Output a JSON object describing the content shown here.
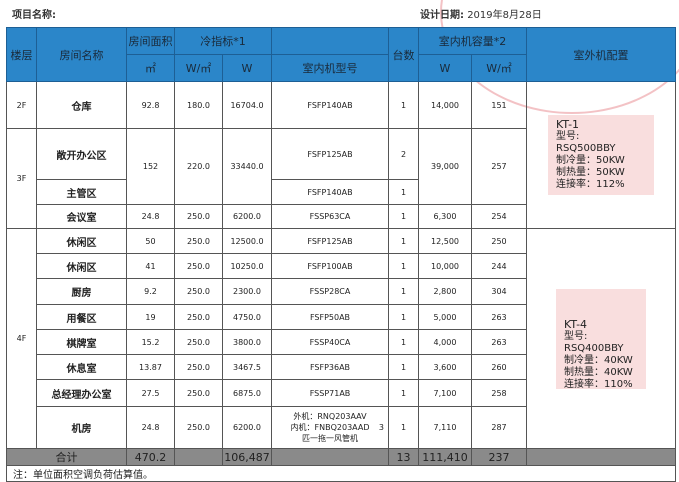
{
  "header": {
    "project_label": "项目名称:",
    "date_label": "设计日期:",
    "date": "2019年8月28日"
  },
  "columns": {
    "floor": "楼层",
    "room": "房间名称",
    "area": "房间面积",
    "area_unit": "㎡",
    "cooling": "冷指标*1",
    "cooling_wm2": "W/㎡",
    "cooling_w": "W",
    "model": "室内机型号",
    "count": "台数",
    "capacity": "室内机容量*2",
    "cap_w": "W",
    "cap_wm2": "W/㎡",
    "outdoor": "室外机配置"
  },
  "rows": [
    {
      "floor": "2F",
      "room": "仓库",
      "area": "92.8",
      "wm2": "180.0",
      "w": "16704.0",
      "model": "FSFP140AB",
      "count": "1",
      "cap_w": "14,000",
      "cap_wm2": "151"
    },
    {
      "floor": "3F",
      "room": "敞开办公区",
      "area": "152",
      "wm2": "220.0",
      "w": "33440.0",
      "model": "FSFP125AB",
      "count": "2",
      "cap_w": "39,000",
      "cap_wm2": "257"
    },
    {
      "room": "主管区",
      "model": "FSFP140AB",
      "count": "1"
    },
    {
      "room": "会议室",
      "area": "24.8",
      "wm2": "250.0",
      "w": "6200.0",
      "model": "FSSP63CA",
      "count": "1",
      "cap_w": "6,300",
      "cap_wm2": "254"
    },
    {
      "floor": "4F",
      "room": "休闲区",
      "area": "50",
      "wm2": "250.0",
      "w": "12500.0",
      "model": "FSFP125AB",
      "count": "1",
      "cap_w": "12,500",
      "cap_wm2": "250"
    },
    {
      "room": "休闲区",
      "area": "41",
      "wm2": "250.0",
      "w": "10250.0",
      "model": "FSFP100AB",
      "count": "1",
      "cap_w": "10,000",
      "cap_wm2": "244"
    },
    {
      "room": "厨房",
      "area": "9.2",
      "wm2": "250.0",
      "w": "2300.0",
      "model": "FSSP28CA",
      "count": "1",
      "cap_w": "2,800",
      "cap_wm2": "304"
    },
    {
      "room": "用餐区",
      "area": "19",
      "wm2": "250.0",
      "w": "4750.0",
      "model": "FSFP50AB",
      "count": "1",
      "cap_w": "5,000",
      "cap_wm2": "263"
    },
    {
      "room": "棋牌室",
      "area": "15.2",
      "wm2": "250.0",
      "w": "3800.0",
      "model": "FSSP40CA",
      "count": "1",
      "cap_w": "4,000",
      "cap_wm2": "263"
    },
    {
      "room": "休息室",
      "area": "13.87",
      "wm2": "250.0",
      "w": "3467.5",
      "model": "FSFP36AB",
      "count": "1",
      "cap_w": "3,600",
      "cap_wm2": "260"
    },
    {
      "room": "总经理办公室",
      "area": "27.5",
      "wm2": "250.0",
      "w": "6875.0",
      "model": "FSSP71AB",
      "count": "1",
      "cap_w": "7,100",
      "cap_wm2": "258"
    },
    {
      "room": "机房",
      "area": "24.8",
      "wm2": "250.0",
      "w": "6200.0",
      "model_l1": "外机：RNQ203AAV",
      "model_l2": "内机：FNBQ203AAD",
      "model_l2b": "3",
      "model_l3": "匹一拖一风管机",
      "count": "1",
      "cap_w": "7,110",
      "cap_wm2": "287"
    }
  ],
  "outdoor": [
    {
      "name": "KT-1",
      "model_label": "型号:",
      "model": "RSQ500BBY",
      "cool": "制冷量：50KW",
      "heat": "制热量：50KW",
      "rate": "连接率：112%"
    },
    {
      "name": "KT-4",
      "model_label": "型号:",
      "model": "RSQ400BBY",
      "cool": "制冷量：40KW",
      "heat": "制热量：40KW",
      "rate": "连接率：110%"
    }
  ],
  "total": {
    "label": "合计",
    "area": "470.2",
    "w": "106,487",
    "count": "13",
    "cap_w": "111,410",
    "cap_wm2": "237"
  },
  "note": "注：单位面积空调负荷估算值。",
  "colors": {
    "header": "#2b86c9",
    "total": "#8a8a8a",
    "outdoor_box": "#f9dede"
  }
}
